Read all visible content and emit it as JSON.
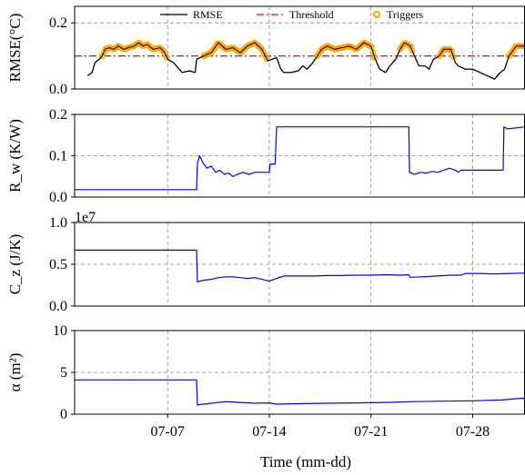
{
  "chart_data": [
    {
      "type": "line",
      "ylabel": "RMSE(°C)",
      "ylim": [
        0,
        0.25
      ],
      "yticks": [
        "0.0",
        "0.2"
      ],
      "ytick_values": [
        0.0,
        0.2
      ],
      "grid": true,
      "legend": {
        "placement": "top-center",
        "entries": [
          {
            "label": "RMSE",
            "color": "#000000",
            "style": "solid"
          },
          {
            "label": "Threshold",
            "color": "#ff0000",
            "style": "dashdot"
          },
          {
            "label": "Triggers",
            "color": "#ffa500",
            "style": "marker"
          }
        ]
      },
      "series": [
        {
          "name": "RMSE",
          "color": "#000000",
          "points": [
            [
              1.5,
              0.04
            ],
            [
              1.8,
              0.05
            ],
            [
              2.0,
              0.08
            ],
            [
              2.3,
              0.09
            ],
            [
              2.5,
              0.1
            ],
            [
              2.7,
              0.12
            ],
            [
              3.0,
              0.125
            ],
            [
              3.3,
              0.12
            ],
            [
              3.6,
              0.13
            ],
            [
              4.0,
              0.12
            ],
            [
              4.3,
              0.125
            ],
            [
              4.7,
              0.13
            ],
            [
              5.0,
              0.14
            ],
            [
              5.3,
              0.13
            ],
            [
              5.6,
              0.135
            ],
            [
              6.0,
              0.12
            ],
            [
              6.5,
              0.125
            ],
            [
              6.8,
              0.11
            ],
            [
              7.0,
              0.09
            ],
            [
              7.4,
              0.08
            ],
            [
              8.0,
              0.05
            ],
            [
              8.5,
              0.055
            ],
            [
              8.9,
              0.05
            ],
            [
              9.0,
              0.09
            ],
            [
              9.5,
              0.1
            ],
            [
              10.0,
              0.11
            ],
            [
              10.5,
              0.14
            ],
            [
              11.0,
              0.12
            ],
            [
              11.5,
              0.125
            ],
            [
              12.0,
              0.11
            ],
            [
              12.5,
              0.13
            ],
            [
              13.0,
              0.14
            ],
            [
              13.5,
              0.12
            ],
            [
              13.9,
              0.085
            ],
            [
              14.2,
              0.09
            ],
            [
              14.5,
              0.095
            ],
            [
              14.8,
              0.06
            ],
            [
              15.0,
              0.05
            ],
            [
              15.5,
              0.05
            ],
            [
              16.0,
              0.055
            ],
            [
              16.3,
              0.07
            ],
            [
              16.6,
              0.06
            ],
            [
              17.0,
              0.08
            ],
            [
              17.3,
              0.1
            ],
            [
              17.6,
              0.12
            ],
            [
              18.0,
              0.13
            ],
            [
              18.5,
              0.12
            ],
            [
              19.0,
              0.125
            ],
            [
              19.5,
              0.13
            ],
            [
              20.0,
              0.12
            ],
            [
              20.5,
              0.14
            ],
            [
              21.0,
              0.13
            ],
            [
              21.3,
              0.09
            ],
            [
              21.6,
              0.06
            ],
            [
              22.0,
              0.05
            ],
            [
              22.3,
              0.07
            ],
            [
              22.7,
              0.09
            ],
            [
              23.0,
              0.12
            ],
            [
              23.3,
              0.14
            ],
            [
              23.7,
              0.13
            ],
            [
              24.0,
              0.1
            ],
            [
              24.3,
              0.07
            ],
            [
              24.7,
              0.07
            ],
            [
              25.0,
              0.06
            ],
            [
              25.3,
              0.09
            ],
            [
              25.7,
              0.1
            ],
            [
              26.0,
              0.12
            ],
            [
              26.5,
              0.12
            ],
            [
              26.8,
              0.08
            ],
            [
              27.0,
              0.07
            ],
            [
              27.5,
              0.06
            ],
            [
              28.0,
              0.06
            ],
            [
              28.5,
              0.05
            ],
            [
              29.0,
              0.04
            ],
            [
              29.5,
              0.03
            ],
            [
              29.9,
              0.05
            ],
            [
              30.2,
              0.06
            ],
            [
              30.5,
              0.1
            ],
            [
              31.0,
              0.13
            ],
            [
              31.6,
              0.13
            ]
          ]
        },
        {
          "name": "Threshold",
          "color": "#ff0000",
          "points": [
            [
              0.6,
              0.1
            ],
            [
              31.6,
              0.1
            ]
          ]
        }
      ],
      "triggers_x": [
        [
          2.5,
          7.0
        ],
        [
          9.5,
          13.9
        ],
        [
          17.3,
          21.3
        ],
        [
          23.0,
          23.9
        ],
        [
          25.7,
          26.7
        ],
        [
          30.5,
          31.6
        ]
      ]
    },
    {
      "type": "line",
      "ylabel": "R_w (K/W)",
      "ylim": [
        0,
        0.2
      ],
      "yticks": [
        "0.0",
        "0.1",
        "0.2"
      ],
      "ytick_values": [
        0.0,
        0.1,
        0.2
      ],
      "grid": true,
      "series": [
        {
          "color": "#0000ff",
          "points": [
            [
              0.6,
              0.018
            ],
            [
              9.0,
              0.018
            ],
            [
              9.05,
              0.08
            ],
            [
              9.2,
              0.1
            ],
            [
              9.4,
              0.085
            ],
            [
              9.7,
              0.07
            ],
            [
              10.0,
              0.075
            ],
            [
              10.3,
              0.06
            ],
            [
              10.6,
              0.065
            ],
            [
              10.9,
              0.055
            ],
            [
              11.2,
              0.058
            ],
            [
              11.5,
              0.05
            ],
            [
              11.8,
              0.055
            ],
            [
              12.2,
              0.06
            ],
            [
              12.6,
              0.055
            ],
            [
              13.0,
              0.06
            ],
            [
              13.5,
              0.06
            ],
            [
              14.0,
              0.06
            ],
            [
              14.05,
              0.08
            ],
            [
              14.4,
              0.08
            ],
            [
              14.5,
              0.17
            ],
            [
              23.6,
              0.17
            ],
            [
              23.65,
              0.06
            ],
            [
              24.0,
              0.055
            ],
            [
              24.4,
              0.06
            ],
            [
              24.8,
              0.058
            ],
            [
              25.2,
              0.062
            ],
            [
              25.6,
              0.06
            ],
            [
              26.0,
              0.065
            ],
            [
              26.4,
              0.07
            ],
            [
              26.8,
              0.065
            ],
            [
              27.0,
              0.06
            ],
            [
              27.2,
              0.065
            ],
            [
              30.1,
              0.065
            ],
            [
              30.15,
              0.17
            ],
            [
              30.4,
              0.165
            ],
            [
              31.6,
              0.17
            ]
          ]
        }
      ]
    },
    {
      "type": "line",
      "ylabel": "C_z (J/K)",
      "ylim": [
        0,
        10000000
      ],
      "yticks": [
        "0.0",
        "0.5",
        "1.0"
      ],
      "ytick_values": [
        0,
        5000000,
        10000000
      ],
      "offset_text": "1e7",
      "grid": true,
      "series": [
        {
          "color": "#0000ff",
          "points": [
            [
              0.6,
              6700000
            ],
            [
              9.0,
              6700000
            ],
            [
              9.05,
              2900000
            ],
            [
              9.5,
              3100000
            ],
            [
              10.0,
              3200000
            ],
            [
              10.5,
              3400000
            ],
            [
              11.0,
              3500000
            ],
            [
              11.5,
              3500000
            ],
            [
              12.0,
              3400000
            ],
            [
              12.5,
              3300000
            ],
            [
              13.0,
              3400000
            ],
            [
              13.5,
              3200000
            ],
            [
              14.0,
              3000000
            ],
            [
              14.5,
              3300000
            ],
            [
              15.0,
              3600000
            ],
            [
              16.0,
              3600000
            ],
            [
              17.0,
              3600000
            ],
            [
              18.0,
              3650000
            ],
            [
              19.0,
              3650000
            ],
            [
              20.0,
              3700000
            ],
            [
              21.0,
              3700000
            ],
            [
              22.0,
              3750000
            ],
            [
              23.0,
              3700000
            ],
            [
              23.6,
              3750000
            ],
            [
              23.7,
              3450000
            ],
            [
              24.5,
              3500000
            ],
            [
              25.5,
              3600000
            ],
            [
              26.5,
              3700000
            ],
            [
              27.2,
              3700000
            ],
            [
              27.5,
              3900000
            ],
            [
              28.5,
              3900000
            ],
            [
              29.5,
              3850000
            ],
            [
              30.5,
              3900000
            ],
            [
              31.6,
              3950000
            ]
          ]
        }
      ]
    },
    {
      "type": "line",
      "ylabel": "α (m²)",
      "ylim": [
        0,
        10
      ],
      "yticks": [
        "0",
        "5",
        "10"
      ],
      "ytick_values": [
        0,
        5,
        10
      ],
      "grid": true,
      "xlabel": "Time (mm-dd)",
      "xticks": [
        "07-07",
        "07-14",
        "07-21",
        "07-28"
      ],
      "series": [
        {
          "color": "#0000ff",
          "points": [
            [
              0.6,
              4.1
            ],
            [
              9.0,
              4.1
            ],
            [
              9.05,
              1.1
            ],
            [
              10.0,
              1.3
            ],
            [
              11.0,
              1.5
            ],
            [
              12.0,
              1.4
            ],
            [
              13.0,
              1.3
            ],
            [
              14.0,
              1.35
            ],
            [
              14.5,
              1.2
            ],
            [
              16.0,
              1.25
            ],
            [
              18.0,
              1.3
            ],
            [
              20.0,
              1.35
            ],
            [
              22.0,
              1.4
            ],
            [
              24.0,
              1.5
            ],
            [
              26.0,
              1.55
            ],
            [
              28.0,
              1.6
            ],
            [
              30.0,
              1.7
            ],
            [
              31.0,
              1.85
            ],
            [
              31.6,
              1.9
            ]
          ]
        }
      ]
    }
  ]
}
